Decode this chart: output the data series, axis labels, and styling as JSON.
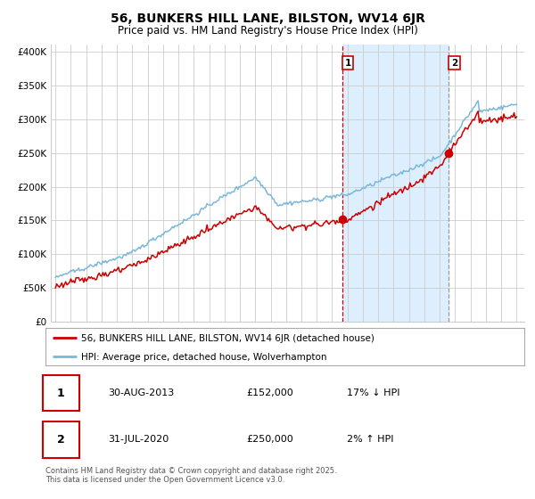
{
  "title": "56, BUNKERS HILL LANE, BILSTON, WV14 6JR",
  "subtitle": "Price paid vs. HM Land Registry's House Price Index (HPI)",
  "legend_line1": "56, BUNKERS HILL LANE, BILSTON, WV14 6JR (detached house)",
  "legend_line2": "HPI: Average price, detached house, Wolverhampton",
  "annotation1_label": "1",
  "annotation1_date": "30-AUG-2013",
  "annotation1_price": "£152,000",
  "annotation1_hpi": "17% ↓ HPI",
  "annotation2_label": "2",
  "annotation2_date": "31-JUL-2020",
  "annotation2_price": "£250,000",
  "annotation2_hpi": "2% ↑ HPI",
  "footer": "Contains HM Land Registry data © Crown copyright and database right 2025.\nThis data is licensed under the Open Government Licence v3.0.",
  "hpi_line_color": "#7ab8d9",
  "price_line_color": "#cc0000",
  "marker_color": "#cc0000",
  "background_color": "#ffffff",
  "grid_color": "#cccccc",
  "shade_color": "#ddeeff",
  "vline1_color": "#cc0000",
  "vline2_color": "#999999",
  "ylim": [
    0,
    410000
  ],
  "yticks": [
    0,
    50000,
    100000,
    150000,
    200000,
    250000,
    300000,
    350000,
    400000
  ],
  "ytick_labels": [
    "£0",
    "£50K",
    "£100K",
    "£150K",
    "£200K",
    "£250K",
    "£300K",
    "£350K",
    "£400K"
  ],
  "year_start": 1995,
  "year_end": 2025,
  "sale1_year": 2013.667,
  "sale1_price": 152000,
  "sale2_year": 2020.583,
  "sale2_price": 250000
}
